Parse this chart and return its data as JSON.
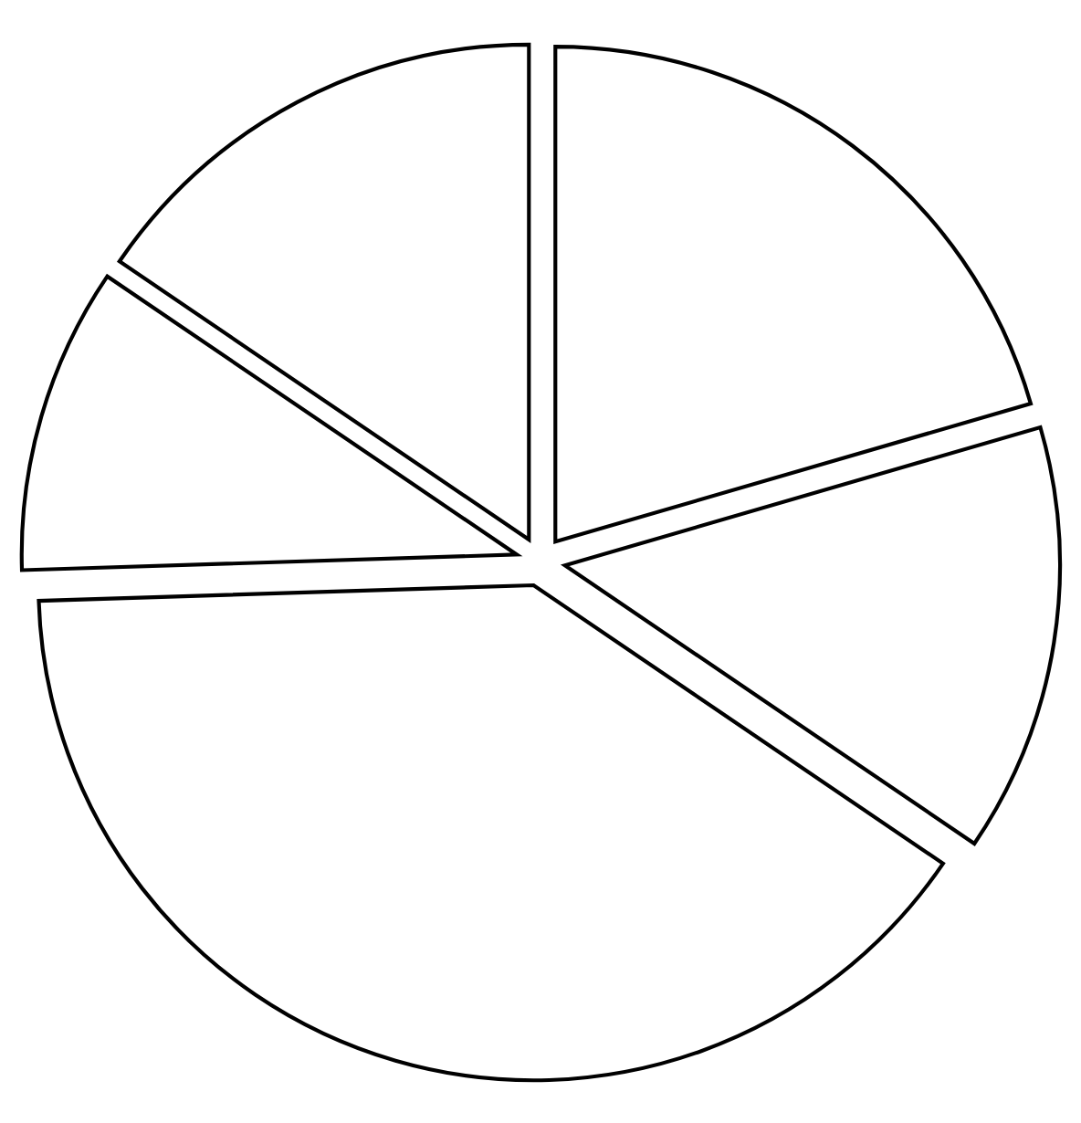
{
  "chart_data": {
    "type": "pie",
    "categories": [
      null,
      null,
      null,
      null,
      null
    ],
    "values": [
      20.5,
      14,
      40,
      10,
      15.5
    ],
    "colors": [
      "#ffffff",
      "#ffffff",
      "#ffffff",
      "#ffffff",
      "#ffffff"
    ]
  }
}
